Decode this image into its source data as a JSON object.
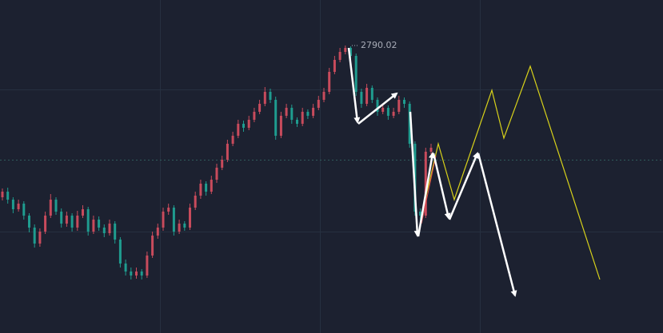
{
  "chart_data": {
    "type": "candlestick",
    "up_color": "#c84b5c",
    "down_color": "#1f9c8f",
    "ylim": [
      2610,
      2818.5
    ],
    "peak_label": 2790.02,
    "candles": [
      [
        2695,
        2700.5,
        2693,
        2698.5
      ],
      [
        2698.5,
        2701,
        2691,
        2693.5
      ],
      [
        2693.5,
        2695,
        2685,
        2687.5
      ],
      [
        2687.5,
        2693.5,
        2686,
        2691
      ],
      [
        2691,
        2692.5,
        2681,
        2683.5
      ],
      [
        2683.5,
        2685,
        2673,
        2676
      ],
      [
        2676,
        2678,
        2663.5,
        2666
      ],
      [
        2666,
        2675.5,
        2664,
        2673.5
      ],
      [
        2673.5,
        2686,
        2672,
        2683.5
      ],
      [
        2683.5,
        2697,
        2682,
        2693.5
      ],
      [
        2693.5,
        2695,
        2684,
        2686
      ],
      [
        2686,
        2688,
        2676,
        2678.5
      ],
      [
        2678.5,
        2686,
        2676.5,
        2683.5
      ],
      [
        2683.5,
        2685,
        2673.5,
        2676
      ],
      [
        2676,
        2686.5,
        2674,
        2683.5
      ],
      [
        2683.5,
        2690,
        2682,
        2687.5
      ],
      [
        2687.5,
        2689,
        2671,
        2673.5
      ],
      [
        2673.5,
        2683.5,
        2672,
        2681
      ],
      [
        2681,
        2683,
        2674,
        2676
      ],
      [
        2676,
        2678,
        2670,
        2672.5
      ],
      [
        2672.5,
        2681,
        2671,
        2678.5
      ],
      [
        2678.5,
        2680,
        2666,
        2668.5
      ],
      [
        2668.5,
        2670,
        2651,
        2653.5
      ],
      [
        2653.5,
        2656,
        2646,
        2648.5
      ],
      [
        2648.5,
        2651,
        2643.5,
        2646
      ],
      [
        2646,
        2651,
        2644,
        2648.5
      ],
      [
        2648.5,
        2650,
        2643.5,
        2646
      ],
      [
        2646,
        2661,
        2644.5,
        2658.5
      ],
      [
        2658.5,
        2673.5,
        2657,
        2671
      ],
      [
        2671,
        2678.5,
        2669,
        2676
      ],
      [
        2676,
        2688.5,
        2674,
        2686
      ],
      [
        2686,
        2691,
        2684,
        2688.5
      ],
      [
        2688.5,
        2690,
        2671,
        2673.5
      ],
      [
        2673.5,
        2681,
        2672,
        2678.5
      ],
      [
        2678.5,
        2680,
        2674,
        2676
      ],
      [
        2676,
        2691,
        2674.5,
        2688.5
      ],
      [
        2688.5,
        2698.5,
        2687,
        2696
      ],
      [
        2696,
        2706,
        2694,
        2703.5
      ],
      [
        2703.5,
        2705,
        2696,
        2698.5
      ],
      [
        2698.5,
        2708.5,
        2697,
        2706
      ],
      [
        2706,
        2716,
        2704,
        2713.5
      ],
      [
        2713.5,
        2721,
        2712,
        2718.5
      ],
      [
        2718.5,
        2731,
        2717,
        2728.5
      ],
      [
        2728.5,
        2736,
        2727,
        2733.5
      ],
      [
        2733.5,
        2743.5,
        2732,
        2741
      ],
      [
        2741,
        2743,
        2736,
        2738.5
      ],
      [
        2738.5,
        2746,
        2737,
        2743.5
      ],
      [
        2743.5,
        2751,
        2742,
        2748.5
      ],
      [
        2748.5,
        2756,
        2747,
        2753.5
      ],
      [
        2753.5,
        2764,
        2752,
        2761
      ],
      [
        2761,
        2763,
        2754,
        2756
      ],
      [
        2756,
        2758,
        2731,
        2733.5
      ],
      [
        2733.5,
        2748.5,
        2732,
        2746
      ],
      [
        2746,
        2753.5,
        2744.5,
        2751
      ],
      [
        2751,
        2753,
        2741,
        2743.5
      ],
      [
        2743.5,
        2745,
        2739,
        2741
      ],
      [
        2741,
        2751,
        2739.5,
        2748.5
      ],
      [
        2748.5,
        2750,
        2744,
        2746
      ],
      [
        2746,
        2753.5,
        2744.5,
        2751
      ],
      [
        2751,
        2758.5,
        2749.5,
        2756
      ],
      [
        2756,
        2763.5,
        2754.5,
        2761
      ],
      [
        2761,
        2776,
        2759.5,
        2773.5
      ],
      [
        2773.5,
        2783.5,
        2772,
        2781
      ],
      [
        2781,
        2788.5,
        2779.5,
        2786
      ],
      [
        2786,
        2790.02,
        2784.5,
        2788.5
      ],
      [
        2788.5,
        2789.5,
        2781,
        2783.5
      ],
      [
        2783.5,
        2785,
        2758.5,
        2761
      ],
      [
        2761,
        2763,
        2751,
        2753.5
      ],
      [
        2753.5,
        2766,
        2752,
        2763.5
      ],
      [
        2763.5,
        2765,
        2754,
        2756
      ],
      [
        2756,
        2757.5,
        2746,
        2748.5
      ],
      [
        2748.5,
        2753.5,
        2747,
        2751
      ],
      [
        2751,
        2752.5,
        2743.5,
        2746
      ],
      [
        2746,
        2751,
        2744.5,
        2748.5
      ],
      [
        2748.5,
        2758.5,
        2747,
        2756
      ],
      [
        2756,
        2757.5,
        2751,
        2753.5
      ],
      [
        2753.5,
        2755,
        2726,
        2728.5
      ],
      [
        2728.5,
        2730,
        2683.5,
        2686
      ],
      [
        2686,
        2688,
        2681,
        2683.5
      ],
      [
        2683.5,
        2726,
        2682,
        2723.5
      ],
      [
        2723.5,
        2728.5,
        2722,
        2726
      ]
    ]
  }
}
